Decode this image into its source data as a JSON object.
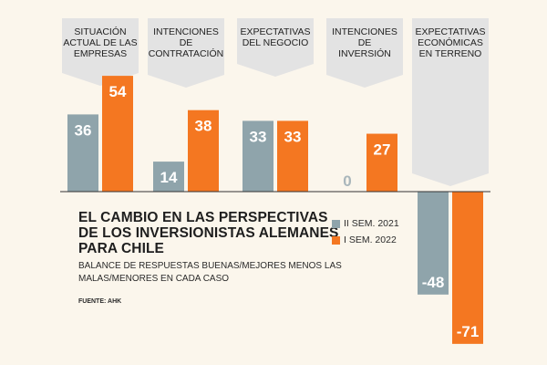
{
  "chart_data": {
    "type": "bar",
    "title": "EL CAMBIO EN LAS PERSPECTIVAS DE LOS INVERSIONISTAS ALEMANES PARA CHILE",
    "subtitle": "BALANCE DE RESPUESTAS BUENAS/MEJORES MENOS LAS MALAS/MENORES EN CADA CASO",
    "source": "FUENTE: AHK",
    "categories": [
      "SITUACIÓN ACTUAL DE LAS EMPRESAS",
      "INTENCIONES DE CONTRATACIÓN",
      "EXPECTATIVAS DEL NEGOCIO",
      "INTENCIONES DE INVERSIÓN",
      "EXPECTATIVAS ECONÓMICAS EN TERRENO"
    ],
    "category_lines": [
      [
        "SITUACIÓN",
        "ACTUAL DE LAS",
        "EMPRESAS"
      ],
      [
        "INTENCIONES",
        "DE",
        "CONTRATACIÓN"
      ],
      [
        "EXPECTATIVAS",
        "DEL NEGOCIO"
      ],
      [
        "INTENCIONES",
        "DE",
        "INVERSIÓN"
      ],
      [
        "EXPECTATIVAS",
        "ECONÓMICAS",
        "EN TERRENO"
      ]
    ],
    "series": [
      {
        "name": "II SEM. 2021",
        "color": "#8fa4ab",
        "values": [
          36,
          14,
          33,
          0,
          -48
        ]
      },
      {
        "name": "I SEM. 2022",
        "color": "#f47721",
        "values": [
          54,
          38,
          33,
          27,
          -71
        ]
      }
    ],
    "ylim": [
      -71,
      54
    ],
    "grid": false,
    "legend_position": "center-right"
  }
}
